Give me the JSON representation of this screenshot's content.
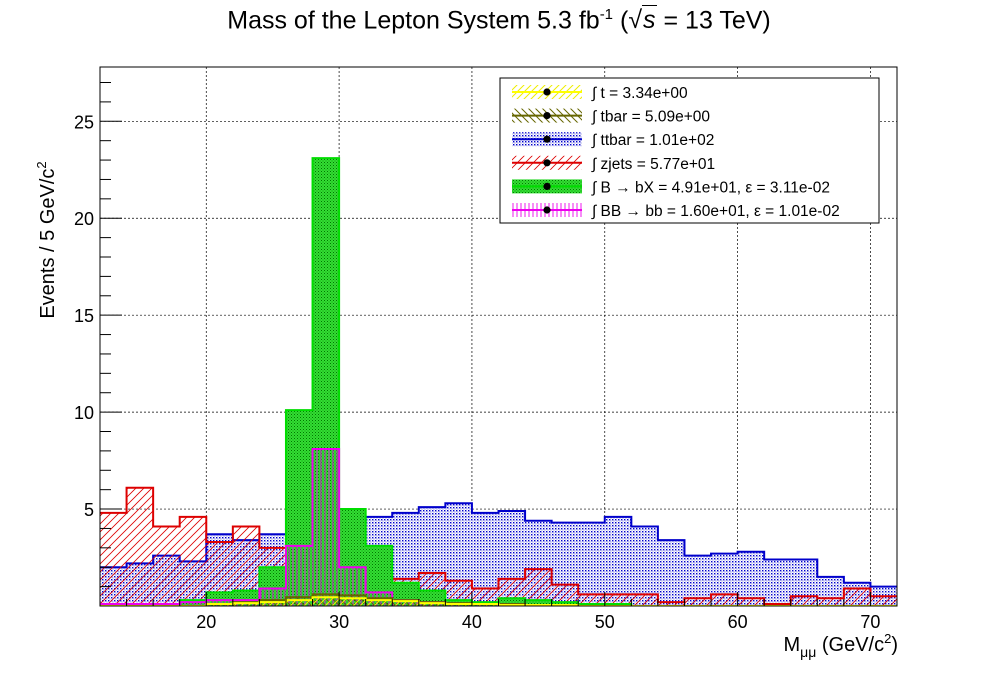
{
  "chart_data": {
    "type": "histogram",
    "title": {
      "main": "Mass of the Lepton System 5.3 fb",
      "sup": "-1",
      "paren_open": " (",
      "sqrt_symbol": "√",
      "sqrt_arg": "s",
      "energy": " = 13 TeV)"
    },
    "xlabel": "M",
    "xlabel_sub": "μμ",
    "xlabel_units": " (GeV/c",
    "xlabel_units_sup": "2",
    "xlabel_units_close": ")",
    "ylabel": "Events / 5 GeV/c",
    "ylabel_sup": "2",
    "xlim": [
      12,
      72
    ],
    "ylim": [
      0,
      27.8
    ],
    "xticks": [
      20,
      30,
      40,
      50,
      60,
      70
    ],
    "xtick_labels": [
      "20",
      "30",
      "40",
      "50",
      "60",
      "70"
    ],
    "yticks": [
      5,
      10,
      15,
      20,
      25
    ],
    "ytick_labels": [
      "5",
      "10",
      "15",
      "20",
      "25"
    ],
    "bin_edges": [
      12,
      14,
      16,
      18,
      20,
      22,
      24,
      26,
      28,
      30,
      32,
      34,
      36,
      38,
      40,
      42,
      44,
      46,
      48,
      50,
      52,
      54,
      56,
      58,
      60,
      62,
      64,
      66,
      68,
      70,
      72
    ],
    "grid": true,
    "legend_position": "top-right",
    "series": [
      {
        "name": "t",
        "legend": "∫ t = 3.34e+00",
        "color": "#ffff00",
        "fill": "hatch-yellow",
        "values": [
          0,
          0,
          0,
          0,
          0.1,
          0.15,
          0.2,
          0.3,
          0.45,
          0.4,
          0.3,
          0.25,
          0.15,
          0.1,
          0.1,
          0.05,
          0.05,
          0.05,
          0,
          0,
          0,
          0,
          0,
          0,
          0,
          0,
          0,
          0,
          0,
          0
        ]
      },
      {
        "name": "tbar",
        "legend": "∫ tbar = 5.09e+00",
        "color": "#666600",
        "fill": "hatch-olive",
        "values": [
          0,
          0,
          0,
          0,
          0.1,
          0.2,
          0.3,
          0.45,
          0.6,
          0.55,
          0.4,
          0.3,
          0.2,
          0.15,
          0.1,
          0.1,
          0.05,
          0.05,
          0,
          0,
          0,
          0,
          0,
          0,
          0,
          0,
          0,
          0,
          0,
          0
        ]
      },
      {
        "name": "ttbar",
        "legend": "∫ ttbar = 1.01e+02",
        "color": "#0000cc",
        "fill": "dots-blue",
        "values": [
          2.0,
          2.2,
          2.6,
          2.3,
          3.7,
          3.4,
          3.7,
          4.9,
          4.3,
          4.4,
          4.6,
          4.8,
          5.1,
          5.3,
          4.8,
          4.9,
          4.4,
          4.3,
          4.3,
          4.6,
          4.1,
          3.4,
          2.6,
          2.7,
          2.8,
          2.4,
          2.4,
          1.5,
          1.2,
          1.0
        ]
      },
      {
        "name": "zjets",
        "legend": "∫ zjets = 5.77e+01",
        "color": "#dd0000",
        "fill": "hatch-red",
        "values": [
          4.8,
          6.1,
          4.1,
          4.6,
          3.3,
          4.1,
          3.0,
          3.2,
          1.6,
          2.0,
          1.6,
          1.4,
          1.7,
          1.3,
          0.9,
          1.4,
          1.9,
          1.1,
          0.6,
          0.6,
          0.6,
          0.2,
          0.4,
          0.6,
          0.4,
          0.1,
          0.5,
          0.4,
          0.9,
          0.5
        ]
      },
      {
        "name": "B_bX",
        "legend": "∫ B → bX = 4.91e+01, ε = 3.11e-02",
        "color": "#00dd00",
        "fill": "dense-green",
        "values": [
          0,
          0,
          0,
          0.3,
          0.7,
          0.8,
          2.0,
          10.1,
          23.1,
          5.0,
          3.1,
          1.2,
          0.8,
          0.3,
          0.2,
          0.4,
          0.3,
          0.2,
          0.1,
          0.1,
          0,
          0,
          0,
          0,
          0,
          0,
          0,
          0,
          0,
          0
        ]
      },
      {
        "name": "BB_bb",
        "legend": "∫ BB → bb = 1.60e+01, ε = 1.01e-02",
        "color": "#ee00ee",
        "fill": "vhatch-magenta",
        "values": [
          0.1,
          0.1,
          0.1,
          0.2,
          0.3,
          0.3,
          0.9,
          3.1,
          8.1,
          2.0,
          0.7,
          0.3,
          0.2,
          0.1,
          0.1,
          0.1,
          0.05,
          0.05,
          0,
          0,
          0,
          0,
          0,
          0,
          0,
          0,
          0,
          0,
          0,
          0
        ]
      }
    ]
  }
}
